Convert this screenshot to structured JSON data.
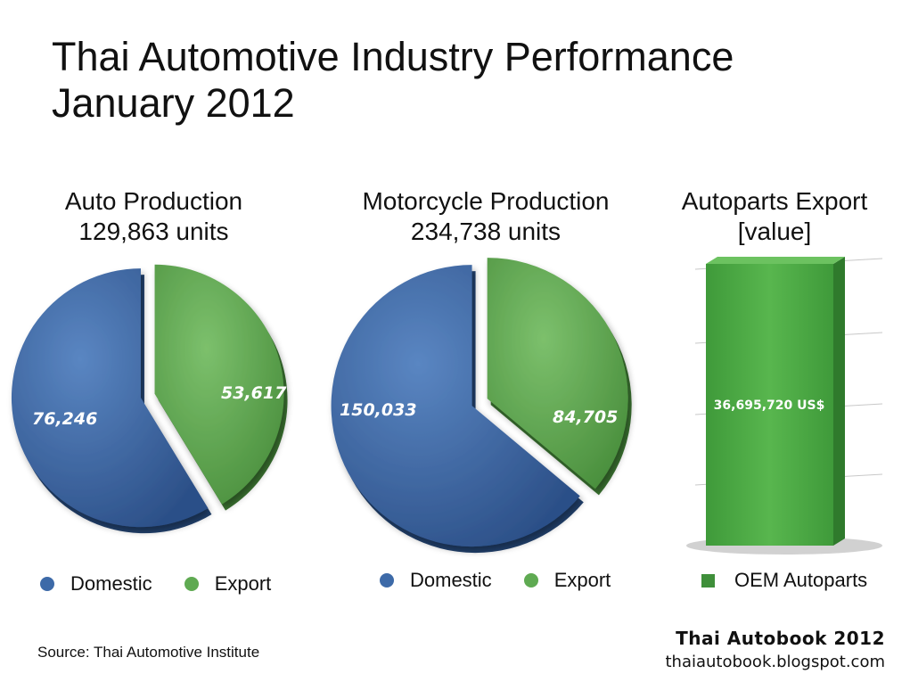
{
  "title": {
    "line1": "Thai Automotive Industry Performance",
    "line2": "January 2012"
  },
  "chart_data": [
    {
      "type": "pie",
      "title": "Auto Production",
      "subtitle": "129,863 units",
      "categories": [
        "Domestic",
        "Export"
      ],
      "values": [
        76246,
        53617
      ],
      "labels": [
        "76,246",
        "53,617"
      ],
      "colors": [
        "#3d6aa8",
        "#5faa52"
      ]
    },
    {
      "type": "pie",
      "title": "Motorcycle Production",
      "subtitle": "234,738 units",
      "categories": [
        "Domestic",
        "Export"
      ],
      "values": [
        150033,
        84705
      ],
      "labels": [
        "150,033",
        "84,705"
      ],
      "colors": [
        "#3d6aa8",
        "#5faa52"
      ]
    },
    {
      "type": "bar",
      "title": "Autoparts Export",
      "subtitle": "[value]",
      "categories": [
        "OEM Autoparts"
      ],
      "values": [
        36695720
      ],
      "labels": [
        "36,695,720 US$"
      ],
      "unit": "US$",
      "colors": [
        "#4caa44"
      ]
    }
  ],
  "legend": {
    "domestic": "Domestic",
    "export": "Export",
    "oem": "OEM Autoparts"
  },
  "source": "Source: Thai Automotive Institute",
  "brand": {
    "name": "Thai Autobook 2012",
    "url": "thaiautobook.blogspot.com"
  }
}
